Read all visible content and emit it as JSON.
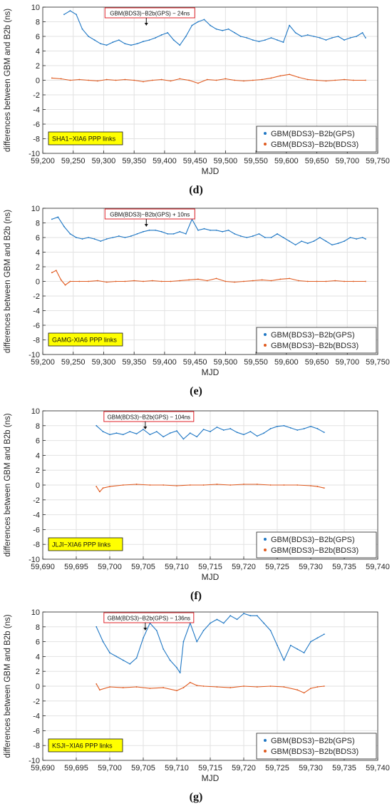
{
  "colors": {
    "series_gps": "#1f77c4",
    "series_bds3": "#e05a1f",
    "link_label_bg": "#ffff00",
    "annotation_border": "#e0232a",
    "grid": "#e2e2e2"
  },
  "chart_data": [
    {
      "type": "line",
      "panel_label": "(d)",
      "xlabel": "MJD",
      "ylabel": "differences between GBM and B2b (ns)",
      "xlim": [
        59200,
        59750
      ],
      "ylim": [
        -10,
        10
      ],
      "x_ticks": [
        59200,
        59250,
        59300,
        59350,
        59400,
        59450,
        59500,
        59550,
        59600,
        59650,
        59700,
        59750
      ],
      "x_tick_labels": [
        "59,200",
        "59,250",
        "59,300",
        "59,350",
        "59,400",
        "59,450",
        "59,500",
        "59,550",
        "59,600",
        "59,650",
        "59,700",
        "59,750"
      ],
      "y_ticks": [
        -10,
        -8,
        -6,
        -4,
        -2,
        0,
        2,
        4,
        6,
        8,
        10
      ],
      "grid": true,
      "legend_position": "bottom-right",
      "link_label": "SHA1−XIA6 PPP links",
      "annotation": {
        "text": "GBM(BDS3)−B2b(GPS) − 24ns",
        "x": 59370
      },
      "series": [
        {
          "name": "GBM(BDS3)−B2b(GPS)",
          "color": "#1f77c4",
          "x": [
            59235,
            59245,
            59255,
            59265,
            59275,
            59285,
            59295,
            59305,
            59315,
            59325,
            59335,
            59345,
            59355,
            59365,
            59375,
            59385,
            59395,
            59405,
            59415,
            59425,
            59435,
            59445,
            59455,
            59465,
            59475,
            59485,
            59495,
            59505,
            59515,
            59525,
            59535,
            59545,
            59555,
            59565,
            59575,
            59585,
            59595,
            59605,
            59615,
            59625,
            59635,
            59645,
            59655,
            59665,
            59675,
            59685,
            59695,
            59705,
            59715,
            59725,
            59730
          ],
          "y": [
            9.0,
            9.5,
            9.0,
            7.0,
            6.0,
            5.5,
            5.0,
            4.8,
            5.2,
            5.5,
            5.0,
            4.8,
            5.0,
            5.3,
            5.5,
            5.8,
            6.2,
            6.5,
            5.5,
            4.8,
            6.0,
            7.5,
            8.0,
            8.3,
            7.5,
            7.0,
            6.8,
            7.0,
            6.5,
            6.0,
            5.8,
            5.5,
            5.3,
            5.5,
            5.8,
            5.5,
            5.2,
            7.5,
            6.5,
            6.0,
            6.2,
            6.0,
            5.8,
            5.5,
            5.8,
            6.0,
            5.5,
            5.8,
            6.0,
            6.5,
            5.8
          ]
        },
        {
          "name": "GBM(BDS3)−B2b(BDS3)",
          "color": "#e05a1f",
          "x": [
            59215,
            59230,
            59245,
            59260,
            59275,
            59290,
            59305,
            59320,
            59335,
            59350,
            59365,
            59380,
            59395,
            59410,
            59425,
            59440,
            59455,
            59470,
            59485,
            59500,
            59515,
            59530,
            59545,
            59560,
            59575,
            59590,
            59605,
            59620,
            59635,
            59650,
            59665,
            59680,
            59695,
            59710,
            59730
          ],
          "y": [
            0.3,
            0.2,
            0.0,
            0.1,
            0.0,
            -0.1,
            0.1,
            0.0,
            0.1,
            0.0,
            -0.2,
            0.0,
            0.1,
            -0.1,
            0.2,
            0.0,
            -0.4,
            0.1,
            0.0,
            0.2,
            0.0,
            -0.1,
            0.0,
            0.1,
            0.3,
            0.6,
            0.8,
            0.4,
            0.1,
            0.0,
            -0.1,
            0.0,
            0.1,
            0.0,
            0.0
          ]
        }
      ]
    },
    {
      "type": "line",
      "panel_label": "(e)",
      "xlabel": "MJD",
      "ylabel": "differences between GBM and B2b (ns)",
      "xlim": [
        59200,
        59750
      ],
      "ylim": [
        -10,
        10
      ],
      "x_ticks": [
        59200,
        59250,
        59300,
        59350,
        59400,
        59450,
        59500,
        59550,
        59600,
        59650,
        59700,
        59750
      ],
      "x_tick_labels": [
        "59,200",
        "59,250",
        "59,300",
        "59,350",
        "59,400",
        "59,450",
        "59,500",
        "59,550",
        "59,600",
        "59,650",
        "59,700",
        "59,750"
      ],
      "y_ticks": [
        -10,
        -8,
        -6,
        -4,
        -2,
        0,
        2,
        4,
        6,
        8,
        10
      ],
      "grid": true,
      "legend_position": "bottom-right",
      "link_label": "GAMG-XIA6 PPP links",
      "annotation": {
        "text": "GBM(BDS3)−B2b(GPS) + 10ns",
        "x": 59370
      },
      "series": [
        {
          "name": "GBM(BDS3)−B2b(GPS)",
          "color": "#1f77c4",
          "x": [
            59215,
            59225,
            59235,
            59245,
            59255,
            59265,
            59275,
            59285,
            59295,
            59305,
            59315,
            59325,
            59335,
            59345,
            59355,
            59365,
            59375,
            59385,
            59395,
            59405,
            59415,
            59425,
            59435,
            59445,
            59455,
            59465,
            59475,
            59485,
            59495,
            59505,
            59515,
            59525,
            59535,
            59545,
            59555,
            59565,
            59575,
            59585,
            59595,
            59605,
            59615,
            59625,
            59635,
            59645,
            59655,
            59665,
            59675,
            59685,
            59695,
            59705,
            59715,
            59725,
            59730
          ],
          "y": [
            8.5,
            8.8,
            7.5,
            6.5,
            6.0,
            5.8,
            6.0,
            5.8,
            5.5,
            5.8,
            6.0,
            6.2,
            6.0,
            6.2,
            6.5,
            6.8,
            7.0,
            7.0,
            6.8,
            6.5,
            6.5,
            6.8,
            6.5,
            8.5,
            7.0,
            7.2,
            7.0,
            7.0,
            6.8,
            7.0,
            6.5,
            6.2,
            6.0,
            6.2,
            6.5,
            6.0,
            6.0,
            6.5,
            6.0,
            5.5,
            5.0,
            5.5,
            5.2,
            5.5,
            6.0,
            5.5,
            5.0,
            5.2,
            5.5,
            6.0,
            5.8,
            6.0,
            5.8
          ]
        },
        {
          "name": "GBM(BDS3)−B2b(BDS3)",
          "color": "#e05a1f",
          "x": [
            59215,
            59222,
            59230,
            59237,
            59245,
            59260,
            59275,
            59290,
            59305,
            59320,
            59335,
            59350,
            59365,
            59380,
            59395,
            59410,
            59425,
            59440,
            59455,
            59470,
            59485,
            59500,
            59515,
            59530,
            59545,
            59560,
            59575,
            59590,
            59605,
            59620,
            59635,
            59650,
            59665,
            59680,
            59695,
            59710,
            59730
          ],
          "y": [
            1.2,
            1.5,
            0.2,
            -0.5,
            0.0,
            0.0,
            0.0,
            0.1,
            -0.1,
            0.0,
            0.0,
            0.1,
            0.0,
            0.1,
            0.0,
            0.0,
            0.1,
            0.2,
            0.3,
            0.1,
            0.4,
            0.0,
            -0.1,
            0.0,
            0.1,
            0.2,
            0.1,
            0.3,
            0.4,
            0.1,
            0.0,
            0.0,
            0.0,
            0.1,
            0.0,
            0.0,
            0.0
          ]
        }
      ]
    },
    {
      "type": "line",
      "panel_label": "(f)",
      "xlabel": "MJD",
      "ylabel": "differences between GBM and B2b (ns)",
      "xlim": [
        59690,
        59740
      ],
      "ylim": [
        -10,
        10
      ],
      "x_ticks": [
        59690,
        59695,
        59700,
        59705,
        59710,
        59715,
        59720,
        59725,
        59730,
        59735,
        59740
      ],
      "x_tick_labels": [
        "59,690",
        "59,695",
        "59,700",
        "59,705",
        "59,710",
        "59,715",
        "59,720",
        "59,725",
        "59,730",
        "59,735",
        "59,740"
      ],
      "y_ticks": [
        -10,
        -8,
        -6,
        -4,
        -2,
        0,
        2,
        4,
        6,
        8,
        10
      ],
      "grid": true,
      "legend_position": "bottom-right",
      "link_label": "JLJI−XIA6 PPP links",
      "annotation": {
        "text": "GBM(BDS3)−B2b(GPS) − 104ns",
        "x": 59705.3
      },
      "series": [
        {
          "name": "GBM(BDS3)−B2b(GPS)",
          "color": "#1f77c4",
          "x": [
            59698,
            59699,
            59700,
            59701,
            59702,
            59703,
            59704,
            59705,
            59706,
            59707,
            59708,
            59709,
            59710,
            59711,
            59712,
            59713,
            59714,
            59715,
            59716,
            59717,
            59718,
            59719,
            59720,
            59721,
            59722,
            59723,
            59724,
            59725,
            59726,
            59727,
            59728,
            59729,
            59730,
            59731,
            59732
          ],
          "y": [
            8.0,
            7.2,
            6.8,
            7.0,
            6.8,
            7.2,
            6.9,
            7.5,
            6.8,
            7.2,
            6.5,
            7.0,
            7.3,
            6.2,
            7.0,
            6.5,
            7.5,
            7.2,
            7.8,
            7.4,
            7.6,
            7.1,
            6.8,
            7.2,
            6.6,
            7.0,
            7.6,
            7.9,
            8.0,
            7.7,
            7.4,
            7.6,
            7.9,
            7.6,
            7.1
          ]
        },
        {
          "name": "GBM(BDS3)−B2b(BDS3)",
          "color": "#e05a1f",
          "x": [
            59698,
            59698.5,
            59699,
            59700,
            59702,
            59704,
            59706,
            59708,
            59710,
            59712,
            59714,
            59716,
            59718,
            59720,
            59722,
            59724,
            59726,
            59728,
            59730,
            59731,
            59732
          ],
          "y": [
            -0.2,
            -0.9,
            -0.4,
            -0.2,
            0.0,
            0.1,
            0.0,
            0.0,
            -0.1,
            0.0,
            0.0,
            0.1,
            0.0,
            0.1,
            0.1,
            0.0,
            0.0,
            0.0,
            -0.1,
            -0.2,
            -0.4
          ]
        }
      ]
    },
    {
      "type": "line",
      "panel_label": "(g)",
      "xlabel": "MJD",
      "ylabel": "differences between GBM and B2b (ns)",
      "xlim": [
        59690,
        59740
      ],
      "ylim": [
        -10,
        10
      ],
      "x_ticks": [
        59690,
        59695,
        59700,
        59705,
        59710,
        59715,
        59720,
        59725,
        59730,
        59735,
        59740
      ],
      "x_tick_labels": [
        "59,690",
        "59,695",
        "59,700",
        "59,705",
        "59,710",
        "59,715",
        "59,720",
        "59,725",
        "59,730",
        "59,735",
        "59,740"
      ],
      "y_ticks": [
        -10,
        -8,
        -6,
        -4,
        -2,
        0,
        2,
        4,
        6,
        8,
        10
      ],
      "grid": true,
      "legend_position": "bottom-right",
      "link_label": "KSJI−XIA6 PPP links",
      "annotation": {
        "text": "GBM(BDS3)−B2b(GPS) − 136ns",
        "x": 59705.3
      },
      "series": [
        {
          "name": "GBM(BDS3)−B2b(GPS)",
          "color": "#1f77c4",
          "x": [
            59698,
            59699,
            59700,
            59701,
            59702,
            59703,
            59704,
            59705,
            59706,
            59707,
            59708,
            59709,
            59710,
            59710.5,
            59711,
            59712,
            59713,
            59714,
            59715,
            59716,
            59717,
            59718,
            59719,
            59720,
            59721,
            59722,
            59723,
            59724,
            59725,
            59726,
            59727,
            59728,
            59729,
            59730,
            59731,
            59732
          ],
          "y": [
            8.0,
            6.0,
            4.5,
            4.0,
            3.5,
            3.0,
            3.8,
            6.5,
            8.5,
            7.5,
            5.0,
            3.5,
            2.5,
            1.8,
            6.0,
            8.5,
            6.0,
            7.5,
            8.5,
            9.0,
            8.5,
            9.5,
            9.0,
            9.8,
            9.5,
            9.5,
            8.5,
            7.5,
            5.5,
            3.5,
            5.5,
            5.0,
            4.5,
            6.0,
            6.5,
            7.0
          ]
        },
        {
          "name": "GBM(BDS3)−B2b(BDS3)",
          "color": "#e05a1f",
          "x": [
            59698,
            59698.5,
            59700,
            59702,
            59704,
            59706,
            59708,
            59710,
            59711,
            59712,
            59713,
            59714,
            59716,
            59718,
            59720,
            59722,
            59724,
            59726,
            59728,
            59729,
            59730,
            59731,
            59732
          ],
          "y": [
            0.3,
            -0.5,
            -0.1,
            -0.2,
            -0.1,
            -0.3,
            -0.2,
            -0.6,
            -0.2,
            0.5,
            0.1,
            0.0,
            -0.1,
            -0.2,
            0.0,
            -0.1,
            0.0,
            -0.1,
            -0.5,
            -0.9,
            -0.3,
            -0.1,
            0.0
          ]
        }
      ]
    }
  ]
}
